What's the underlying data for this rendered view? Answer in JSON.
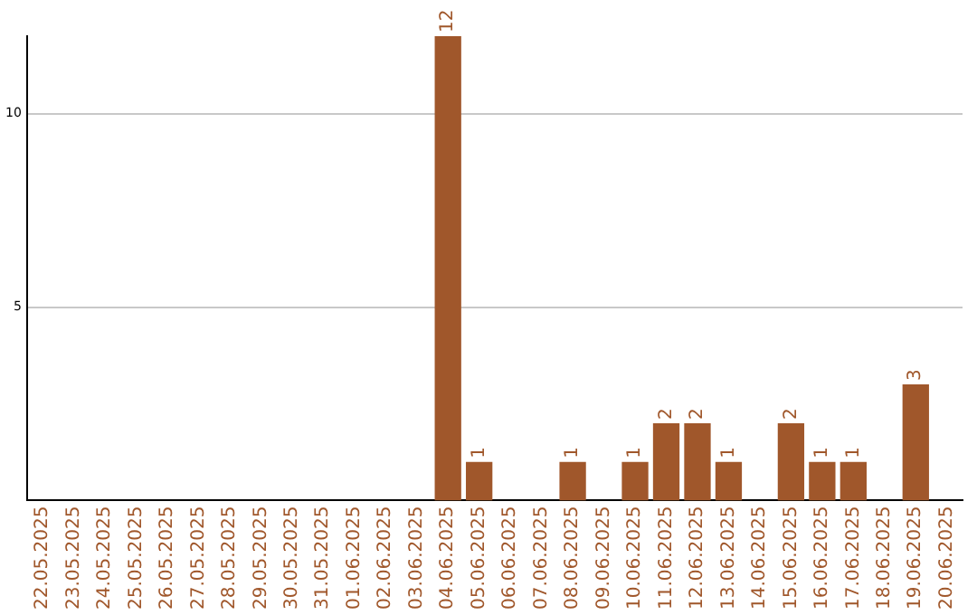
{
  "chart_data": {
    "type": "bar",
    "categories": [
      "22.05.2025",
      "23.05.2025",
      "24.05.2025",
      "25.05.2025",
      "26.05.2025",
      "27.05.2025",
      "28.05.2025",
      "29.05.2025",
      "30.05.2025",
      "31.05.2025",
      "01.06.2025",
      "02.06.2025",
      "03.06.2025",
      "04.06.2025",
      "05.06.2025",
      "06.06.2025",
      "07.06.2025",
      "08.06.2025",
      "09.06.2025",
      "10.06.2025",
      "11.06.2025",
      "12.06.2025",
      "13.06.2025",
      "14.06.2025",
      "15.06.2025",
      "16.06.2025",
      "17.06.2025",
      "18.06.2025",
      "19.06.2025",
      "20.06.2025"
    ],
    "values": [
      0,
      0,
      0,
      0,
      0,
      0,
      0,
      0,
      0,
      0,
      0,
      0,
      0,
      12,
      1,
      0,
      0,
      1,
      0,
      1,
      2,
      2,
      1,
      0,
      2,
      1,
      1,
      0,
      3,
      0
    ],
    "value_labels": [
      null,
      null,
      null,
      null,
      null,
      null,
      null,
      null,
      null,
      null,
      null,
      null,
      null,
      "12",
      "1",
      null,
      null,
      "1",
      null,
      "1",
      "2",
      "2",
      "1",
      null,
      "2",
      "1",
      "1",
      null,
      "3",
      null
    ],
    "color": "#a0572b",
    "ylim": [
      0,
      12
    ],
    "yticks": [
      5,
      10
    ],
    "grid": "y",
    "legend": false
  }
}
